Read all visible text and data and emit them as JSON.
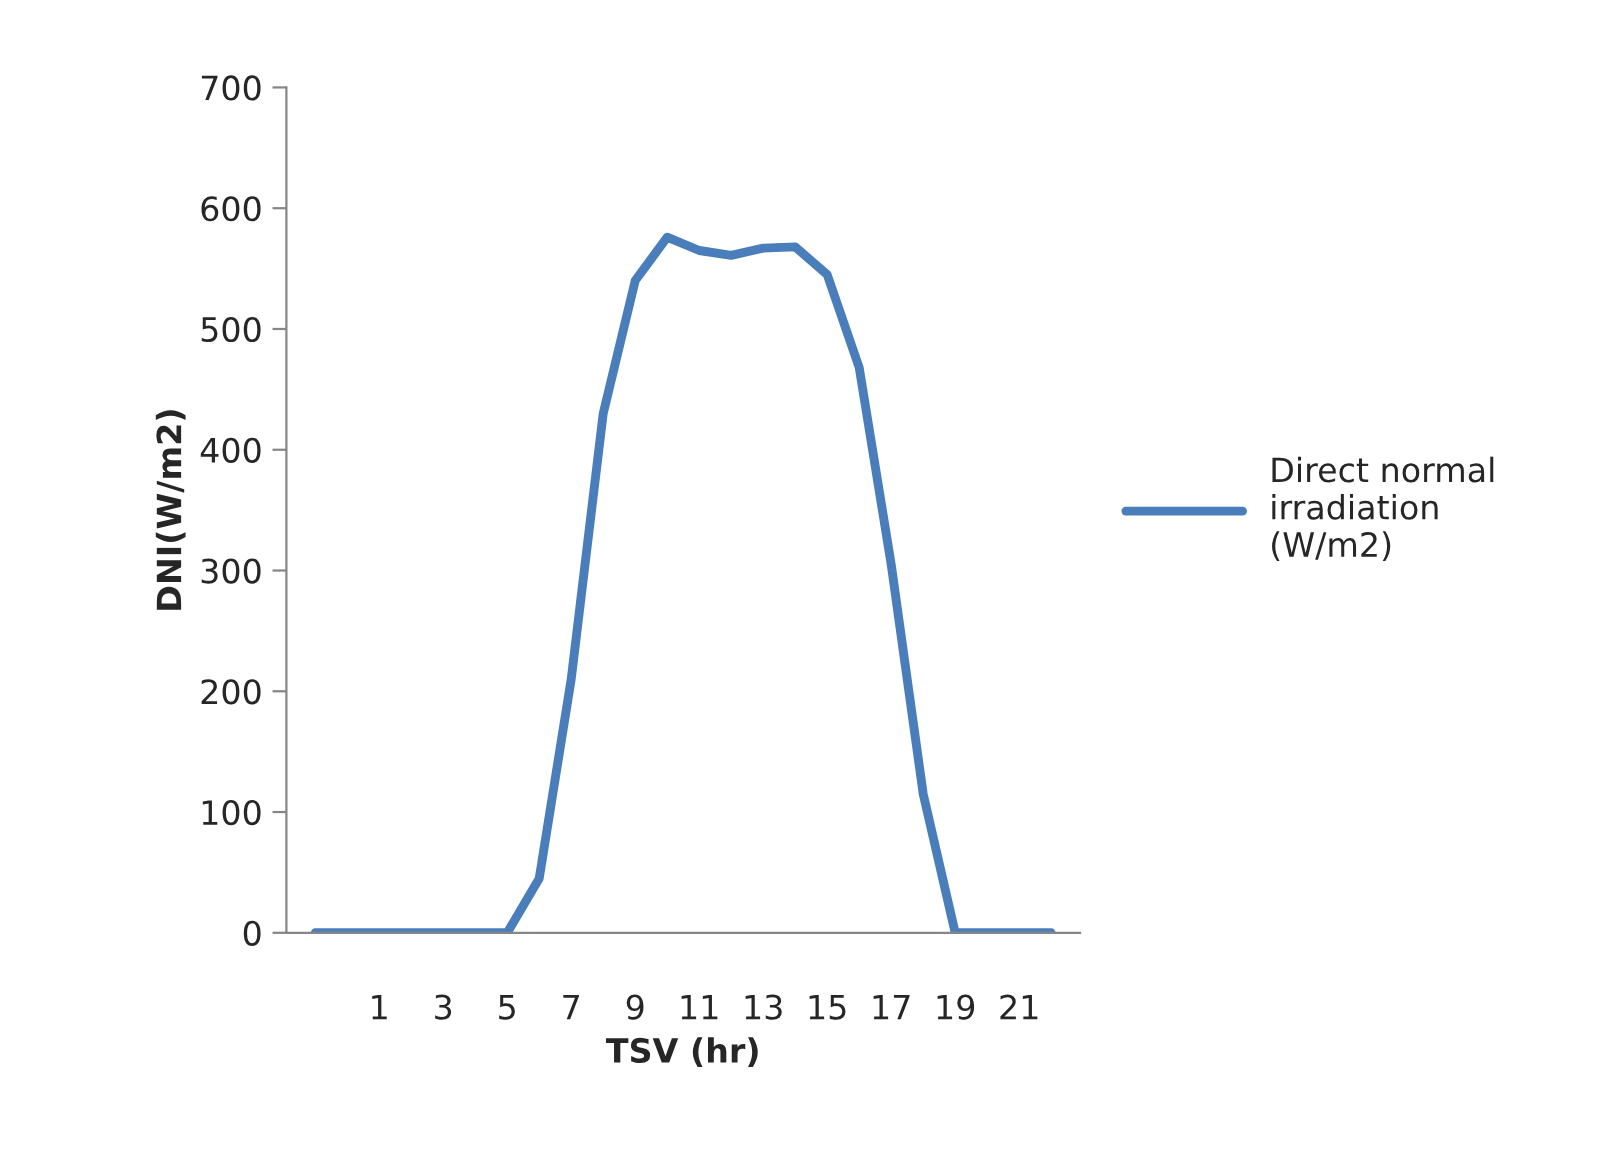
{
  "chart_data": {
    "type": "line",
    "xlabel": "TSV (hr)",
    "ylabel": "DNI(W/m2)",
    "categories": [
      null,
      null,
      "1",
      null,
      "3",
      null,
      "5",
      null,
      "7",
      null,
      "9",
      null,
      "11",
      null,
      "13",
      null,
      "15",
      null,
      "17",
      null,
      "19",
      null,
      "21",
      null
    ],
    "series": [
      {
        "name": "Direct normal irradiation (W/m2)",
        "color": "#4a7ebb",
        "values": [
          0,
          0,
          0,
          0,
          0,
          0,
          0,
          45,
          210,
          430,
          540,
          576,
          565,
          561,
          567,
          568,
          545,
          468,
          305,
          115,
          0,
          0,
          0,
          0
        ]
      }
    ],
    "ylim": [
      0,
      700
    ],
    "yticks": [
      0,
      100,
      200,
      300,
      400,
      500,
      600,
      700
    ],
    "grid": false,
    "legend": "right",
    "marker": "none",
    "line_style": "solid"
  }
}
